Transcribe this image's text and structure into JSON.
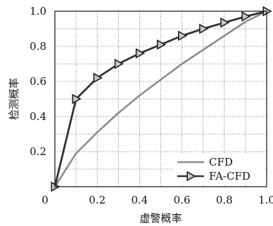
{
  "chart_data": {
    "type": "line",
    "title": "",
    "xlabel": "虚警概率",
    "ylabel": "检测概率",
    "xlim": [
      0,
      1.0
    ],
    "ylim": [
      0,
      1.0
    ],
    "grid": true,
    "legend_position": "bottom-right",
    "x_ticks": [
      "0",
      "0.2",
      "0.4",
      "0.6",
      "0.8",
      "1.0"
    ],
    "y_ticks": [
      "0.2",
      "0.4",
      "0.6",
      "0.8",
      "1.0"
    ],
    "series": [
      {
        "name": "CFD",
        "color": "#8c8c8c",
        "marker": "none",
        "x": [
          0,
          0.1,
          0.2,
          0.3,
          0.4,
          0.5,
          0.6,
          0.7,
          0.8,
          0.9,
          1.0
        ],
        "y": [
          0,
          0.19,
          0.31,
          0.42,
          0.52,
          0.61,
          0.7,
          0.78,
          0.86,
          0.94,
          1.0
        ]
      },
      {
        "name": "FA-CFD",
        "color": "#333333",
        "marker": "triangle-right",
        "x": [
          0,
          0.1,
          0.2,
          0.3,
          0.4,
          0.5,
          0.6,
          0.7,
          0.8,
          0.9,
          1.0
        ],
        "y": [
          0,
          0.5,
          0.62,
          0.7,
          0.76,
          0.81,
          0.86,
          0.9,
          0.935,
          0.97,
          1.0
        ]
      }
    ]
  }
}
